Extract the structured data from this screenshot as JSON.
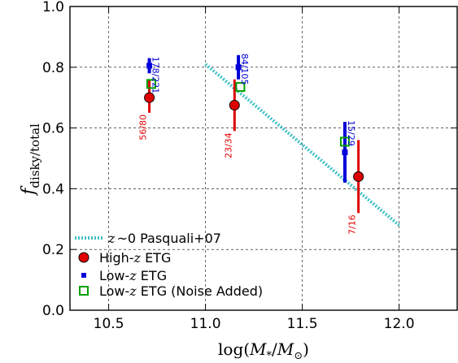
{
  "chart_data": {
    "type": "scatter",
    "xlim": [
      10.3,
      12.3
    ],
    "ylim": [
      0.0,
      1.0
    ],
    "xlabel": "log(M*/M⊙)",
    "ylabel": "f disky/total",
    "xticks": [
      10.5,
      11.0,
      11.5,
      12.0
    ],
    "xtick_labels": [
      "10.5",
      "11.0",
      "11.5",
      "12.0"
    ],
    "yticks": [
      0.0,
      0.2,
      0.4,
      0.6,
      0.8,
      1.0
    ],
    "ytick_labels": [
      "0.0",
      "0.2",
      "0.4",
      "0.6",
      "0.8",
      "1.0"
    ],
    "grid": true,
    "legend_position": "bottom-left",
    "reference_line": {
      "name": "z~0 Pasquali+07",
      "x": [
        11.0,
        12.0
      ],
      "y": [
        0.81,
        0.28
      ],
      "color": "#40c0c8",
      "style": "dotted"
    },
    "series": [
      {
        "name": "High-z ETG",
        "marker": "circle",
        "color": "#e00000",
        "points": [
          {
            "x": 10.71,
            "y": 0.7,
            "ylow": 0.65,
            "yhigh": 0.76,
            "label": "56/80"
          },
          {
            "x": 11.15,
            "y": 0.675,
            "ylow": 0.59,
            "yhigh": 0.76,
            "label": "23/34"
          },
          {
            "x": 11.79,
            "y": 0.44,
            "ylow": 0.32,
            "yhigh": 0.56,
            "label": "7/16"
          }
        ]
      },
      {
        "name": "Low-z ETG",
        "marker": "square-small",
        "color": "#0000d8",
        "points": [
          {
            "x": 10.71,
            "y": 0.805,
            "ylow": 0.78,
            "yhigh": 0.83,
            "label": "178/221"
          },
          {
            "x": 11.17,
            "y": 0.8,
            "ylow": 0.76,
            "yhigh": 0.84,
            "label": "84/105"
          },
          {
            "x": 11.72,
            "y": 0.52,
            "ylow": 0.42,
            "yhigh": 0.62,
            "label": "15/29"
          }
        ]
      },
      {
        "name": "Low-z ETG (Noise Added)",
        "marker": "square-open",
        "color": "#00a000",
        "points": [
          {
            "x": 10.72,
            "y": 0.745
          },
          {
            "x": 11.18,
            "y": 0.735
          },
          {
            "x": 11.72,
            "y": 0.555
          }
        ]
      }
    ]
  },
  "legend": {
    "items": [
      {
        "label": "z~0 Pasquali+07"
      },
      {
        "label": "High-z ETG"
      },
      {
        "label": "Low-z ETG"
      },
      {
        "label": "Low-z ETG (Noise Added)"
      }
    ]
  }
}
